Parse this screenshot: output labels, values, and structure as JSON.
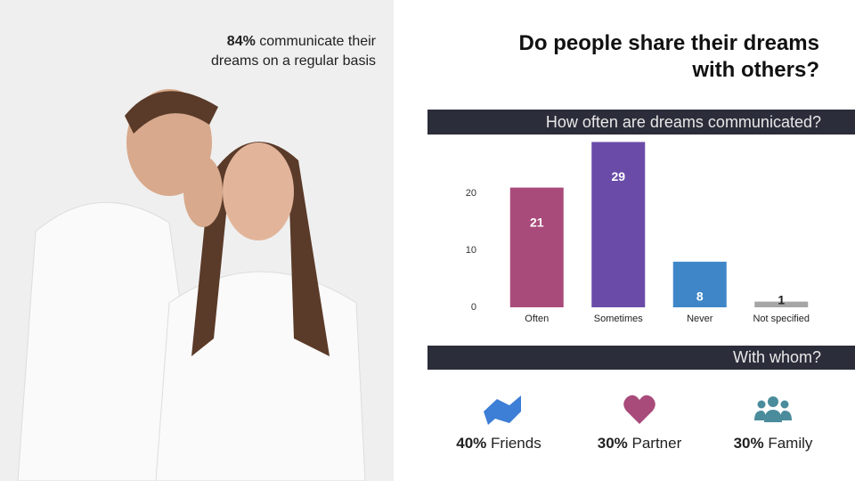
{
  "title": "Do people share their dreams with others?",
  "caption": {
    "highlight": "84%",
    "text": "communicate their dreams on a regular basis"
  },
  "chart_data": {
    "type": "bar",
    "title": "How often are dreams communicated?",
    "categories": [
      "Often",
      "Sometimes",
      "Never",
      "Not specified"
    ],
    "values": [
      21,
      29,
      8,
      1
    ],
    "colors": [
      "#a84b7a",
      "#6a4ca8",
      "#3e86c8",
      "#a6a6a6"
    ],
    "ylim": [
      0,
      30
    ],
    "yticks": [
      0,
      10,
      20
    ],
    "grid": false
  },
  "whom": {
    "title": "With whom?",
    "items": [
      {
        "percent": "40%",
        "label": "Friends"
      },
      {
        "percent": "30%",
        "label": "Partner"
      },
      {
        "percent": "30%",
        "label": "Family"
      }
    ]
  }
}
